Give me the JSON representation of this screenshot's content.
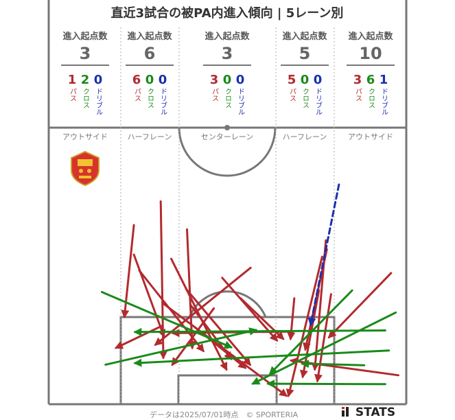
{
  "title": "直近3試合の被PA内進入傾向 | 5レーン別",
  "header_label": "進入起点数",
  "lanes": [
    {
      "name": "アウトサイド",
      "total": "3",
      "pass": "1",
      "cross": "2",
      "dribble": "0"
    },
    {
      "name": "ハーフレーン",
      "total": "6",
      "pass": "6",
      "cross": "0",
      "dribble": "0"
    },
    {
      "name": "センターレーン",
      "total": "3",
      "pass": "3",
      "cross": "0",
      "dribble": "0"
    },
    {
      "name": "ハーフレーン",
      "total": "5",
      "pass": "5",
      "cross": "0",
      "dribble": "0"
    },
    {
      "name": "アウトサイド",
      "total": "10",
      "pass": "3",
      "cross": "6",
      "dribble": "1"
    }
  ],
  "type_labels": {
    "pass": "パス",
    "cross": "クロス",
    "dribble": "ドリブル"
  },
  "colors": {
    "pass": "#b22a2e",
    "cross": "#1a8a1a",
    "dribble": "#1a2fb0",
    "pitch": "#777777"
  },
  "logo_icon": "team-crest-icon",
  "footer": "データは2025/07/01時点　© SPORTERIA",
  "brand": "STATS",
  "chart_data": {
    "type": "scatter",
    "title": "直近3試合の被PA内進入傾向 | 5レーン別",
    "xlim": [
      0,
      68
    ],
    "ylim": [
      0,
      52.5
    ],
    "arrows": [
      {
        "kind": "pass",
        "from": [
          16.2,
          34
        ],
        "to": [
          14.4,
          16.6
        ]
      },
      {
        "kind": "pass",
        "from": [
          21.3,
          38.5
        ],
        "to": [
          21.8,
          8.8
        ]
      },
      {
        "kind": "pass",
        "from": [
          17.2,
          25.4
        ],
        "to": [
          29.4,
          10.1
        ]
      },
      {
        "kind": "pass",
        "from": [
          16.2,
          28.4
        ],
        "to": [
          21.9,
          12.9
        ]
      },
      {
        "kind": "pass",
        "from": [
          26.3,
          33.2
        ],
        "to": [
          27.3,
          10.7
        ]
      },
      {
        "kind": "pass",
        "from": [
          23.3,
          27.6
        ],
        "to": [
          33.8,
          6.6
        ]
      },
      {
        "kind": "pass",
        "from": [
          21.8,
          19.1
        ],
        "to": [
          45.2,
          1.6
        ]
      },
      {
        "kind": "pass",
        "from": [
          26.1,
          21.9
        ],
        "to": [
          38.3,
          7.5
        ]
      },
      {
        "kind": "pass",
        "from": [
          27,
          18.8
        ],
        "to": [
          34.7,
          8.6
        ]
      },
      {
        "kind": "pass",
        "from": [
          38.4,
          25.9
        ],
        "to": [
          20.3,
          11.3
        ]
      },
      {
        "kind": "pass",
        "from": [
          33,
          24
        ],
        "to": [
          43.4,
          12.1
        ]
      },
      {
        "kind": "pass",
        "from": [
          27.8,
          14.6
        ],
        "to": [
          37.4,
          6.9
        ]
      },
      {
        "kind": "pass",
        "from": [
          31.4,
          18.2
        ],
        "to": [
          23.5,
          7.5
        ]
      },
      {
        "kind": "pass",
        "from": [
          36.5,
          20.1
        ],
        "to": [
          44.6,
          12.4
        ]
      },
      {
        "kind": "pass",
        "from": [
          46.7,
          20.1
        ],
        "to": [
          46,
          12.4
        ]
      },
      {
        "kind": "pass",
        "from": [
          52.7,
          31.1
        ],
        "to": [
          50.6,
          6.6
        ]
      },
      {
        "kind": "pass",
        "from": [
          52.9,
          29.4
        ],
        "to": [
          48.8,
          10.4
        ]
      },
      {
        "kind": "pass",
        "from": [
          51.4,
          21.6
        ],
        "to": [
          48.3,
          5.2
        ]
      },
      {
        "kind": "pass",
        "from": [
          52,
          28
        ],
        "to": [
          45.6,
          1.6
        ]
      },
      {
        "kind": "pass",
        "from": [
          65.1,
          24.9
        ],
        "to": [
          53.3,
          12.7
        ]
      },
      {
        "kind": "pass",
        "from": [
          66.5,
          5.5
        ],
        "to": [
          46.1,
          8.3
        ]
      },
      {
        "kind": "pass",
        "from": [
          53.7,
          20.9
        ],
        "to": [
          51.1,
          4.4
        ]
      },
      {
        "kind": "pass",
        "from": [
          21.6,
          14.9
        ],
        "to": [
          12.8,
          10.7
        ]
      },
      {
        "kind": "pass",
        "from": [
          46.4,
          13.8
        ],
        "to": [
          23.6,
          13.5
        ]
      },
      {
        "kind": "cross",
        "from": [
          10.1,
          21.3
        ],
        "to": [
          34.7,
          10.8
        ]
      },
      {
        "kind": "cross",
        "from": [
          10.8,
          7.5
        ],
        "to": [
          39.4,
          14.1
        ]
      },
      {
        "kind": "cross",
        "from": [
          64,
          14
        ],
        "to": [
          16.4,
          13.7
        ]
      },
      {
        "kind": "cross",
        "from": [
          66,
          17.4
        ],
        "to": [
          38.8,
          3.9
        ]
      },
      {
        "kind": "cross",
        "from": [
          64.7,
          10.2
        ],
        "to": [
          16.4,
          7.8
        ]
      },
      {
        "kind": "cross",
        "from": [
          64,
          3.8
        ],
        "to": [
          41.7,
          3.9
        ]
      },
      {
        "kind": "cross",
        "from": [
          57.7,
          21.6
        ],
        "to": [
          42.1,
          5.8
        ]
      },
      {
        "kind": "cross",
        "from": [
          60,
          7.4
        ],
        "to": [
          48.2,
          7.7
        ]
      },
      {
        "kind": "dribble",
        "from": [
          55.2,
          41.7
        ],
        "to": [
          49.8,
          15.1
        ]
      }
    ]
  }
}
